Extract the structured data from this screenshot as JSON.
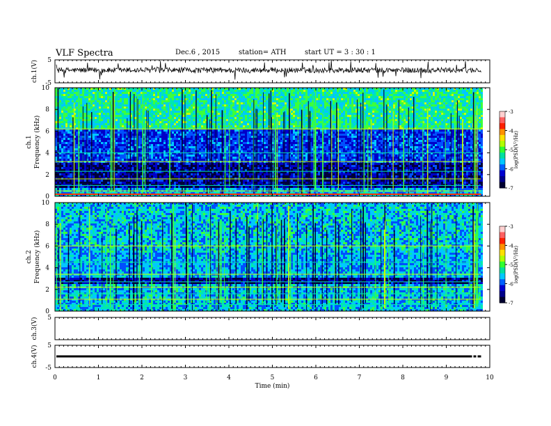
{
  "header": {
    "title": "VLF  Spectra",
    "date": "Dec.6  , 2015",
    "station": "station= ATH",
    "start": "start  UT  =   3  : 30 : 1"
  },
  "chart_data": [
    {
      "type": "line",
      "ylabel": "ch.1(V)",
      "ylim": [
        -5,
        5
      ],
      "yticks": [
        "5",
        "-5"
      ],
      "baseline": 0.5,
      "noise_amplitude": 0.3
    },
    {
      "type": "heatmap",
      "ylabel": "ch.1\nFrequency  (kHz)",
      "ylim": [
        0,
        10
      ],
      "yticks": [
        "0",
        "2",
        "4",
        "6",
        "8",
        "10"
      ],
      "colorbar": {
        "label": "log(PSD(V²/Hz)",
        "range": [
          -7,
          -3
        ],
        "ticks": [
          "-3",
          "-4",
          "-5",
          "-6",
          "-7"
        ]
      },
      "colors": [
        "#00003a",
        "#0000c8",
        "#0050ff",
        "#00c8ff",
        "#00e8b0",
        "#3cff3c",
        "#c8ff00",
        "#ffb000",
        "#ff3000",
        "#ffb0b0"
      ]
    },
    {
      "type": "heatmap",
      "ylabel": "ch.2\nFrequency  (kHz)",
      "ylim": [
        0,
        10
      ],
      "yticks": [
        "0",
        "2",
        "4",
        "6",
        "8",
        "10"
      ],
      "colorbar": {
        "label": "log(PSD(V²/Hz)",
        "range": [
          -7,
          -3
        ],
        "ticks": [
          "-3",
          "-4",
          "-5",
          "-6",
          "-7"
        ]
      }
    },
    {
      "type": "line",
      "ylabel": "ch.3(V)",
      "ylim": [
        -5,
        5
      ],
      "yticks": [
        "5"
      ],
      "empty": true
    },
    {
      "type": "line",
      "ylabel": "ch.4(V)",
      "ylim": [
        -5,
        5
      ],
      "yticks": [
        "5",
        "-5"
      ],
      "baseline": 0
    }
  ],
  "xaxis": {
    "label": "Time  (min)",
    "range": [
      0,
      10
    ],
    "ticks": [
      "0",
      "1",
      "2",
      "3",
      "4",
      "5",
      "6",
      "7",
      "8",
      "9",
      "10"
    ],
    "data_end": 9.8
  }
}
